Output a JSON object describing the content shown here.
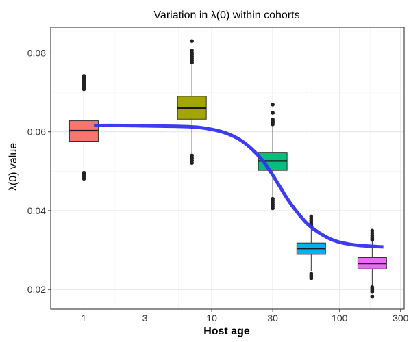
{
  "chart_data": {
    "type": "boxplot",
    "title": "Variation in  λ(0)  within cohorts",
    "xlabel": "Host age",
    "ylabel": "λ(0) value",
    "x_scale": "log10",
    "xlim": [
      0.55,
      320
    ],
    "ylim": [
      0.015,
      0.0865
    ],
    "x_ticks": [
      1,
      3,
      10,
      30,
      100,
      300
    ],
    "x_tick_labels": [
      "1",
      "3",
      "10",
      "30",
      "100",
      "300"
    ],
    "y_ticks": [
      0.02,
      0.04,
      0.06,
      0.08
    ],
    "y_tick_labels": [
      "0.02",
      "0.04",
      "0.06",
      "0.08"
    ],
    "grid": true,
    "boxes": [
      {
        "x": 1,
        "color": "#F8766D",
        "q1": 0.0576,
        "median": 0.0603,
        "q3": 0.0628,
        "whisker_low": 0.0499,
        "whisker_high": 0.0705,
        "outliers": [
          0.0481,
          0.0487,
          0.0492,
          0.0496,
          0.0708,
          0.0711,
          0.0714,
          0.0716,
          0.0719,
          0.0722,
          0.0725,
          0.0729,
          0.0733,
          0.0737,
          0.0742
        ]
      },
      {
        "x": 7,
        "color": "#A3A500",
        "q1": 0.0632,
        "median": 0.066,
        "q3": 0.069,
        "whisker_low": 0.0545,
        "whisker_high": 0.0772,
        "outliers": [
          0.0521,
          0.0527,
          0.0533,
          0.054,
          0.0776,
          0.0781,
          0.0786,
          0.0791,
          0.0796,
          0.08,
          0.0806,
          0.083
        ]
      },
      {
        "x": 30,
        "color": "#00BF7D",
        "q1": 0.0502,
        "median": 0.0526,
        "q3": 0.0548,
        "whisker_low": 0.0434,
        "whisker_high": 0.0615,
        "outliers": [
          0.0406,
          0.0411,
          0.0416,
          0.0421,
          0.0426,
          0.043,
          0.0619,
          0.0623,
          0.0627,
          0.0631,
          0.0648,
          0.0669
        ]
      },
      {
        "x": 60,
        "color": "#00B0F6",
        "q1": 0.0289,
        "median": 0.0304,
        "q3": 0.0318,
        "whisker_low": 0.0247,
        "whisker_high": 0.036,
        "outliers": [
          0.0228,
          0.0232,
          0.0236,
          0.024,
          0.0363,
          0.0367,
          0.0371,
          0.0375,
          0.038,
          0.0385
        ]
      },
      {
        "x": 180,
        "color": "#E76BF3",
        "q1": 0.0252,
        "median": 0.0266,
        "q3": 0.0281,
        "whisker_low": 0.021,
        "whisker_high": 0.0322,
        "outliers": [
          0.0182,
          0.0194,
          0.0199,
          0.0203,
          0.0206,
          0.0326,
          0.0331,
          0.0337,
          0.0343,
          0.0349
        ]
      }
    ],
    "series": [
      {
        "type": "line",
        "color": "#3333EE",
        "x": [
          1.2,
          2,
          3,
          5,
          8,
          12,
          16,
          20,
          25,
          30,
          35,
          40,
          50,
          60,
          80,
          100,
          140,
          220
        ],
        "y": [
          0.0616,
          0.0616,
          0.0615,
          0.0614,
          0.0611,
          0.06,
          0.0583,
          0.056,
          0.0527,
          0.049,
          0.0455,
          0.0425,
          0.0384,
          0.0358,
          0.0332,
          0.032,
          0.0312,
          0.0308
        ]
      }
    ]
  }
}
